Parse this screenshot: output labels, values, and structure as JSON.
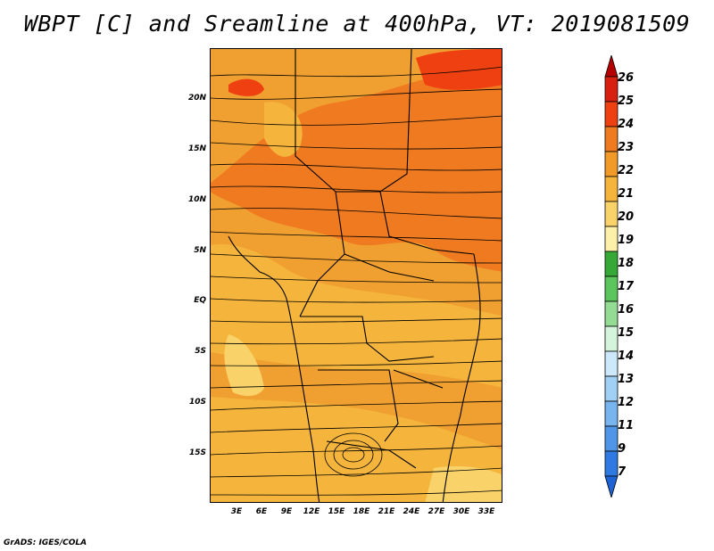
{
  "title": "WBPT [C] and Sreamline at 400hPa, VT: 2019081509",
  "footer": "GrADS: IGES/COLA",
  "map": {
    "y_axis_labels": [
      "20N",
      "15N",
      "10N",
      "5N",
      "EQ",
      "5S",
      "10S",
      "15S"
    ],
    "x_axis_labels": [
      "3E",
      "6E",
      "9E",
      "12E",
      "15E",
      "18E",
      "21E",
      "24E",
      "27E",
      "30E",
      "33E"
    ],
    "dominant_fill_colors": [
      "#f0a030",
      "#f07a20",
      "#f5c050",
      "#fbe08a"
    ]
  },
  "colorbar": {
    "labels": [
      "26",
      "25",
      "24",
      "23",
      "22",
      "21",
      "20",
      "19",
      "18",
      "17",
      "16",
      "15",
      "14",
      "13",
      "12",
      "11",
      "9",
      "7"
    ],
    "colors": [
      "#b40000",
      "#d82010",
      "#ee4010",
      "#f07a20",
      "#f29a28",
      "#f5b53c",
      "#f9d36a",
      "#fdf0a8",
      "#36a836",
      "#5cc65c",
      "#94dc94",
      "#d4f5dc",
      "#cce8fa",
      "#a0d0f4",
      "#78b4ee",
      "#4f96e8",
      "#2f7ae2",
      "#1e63d6"
    ]
  }
}
